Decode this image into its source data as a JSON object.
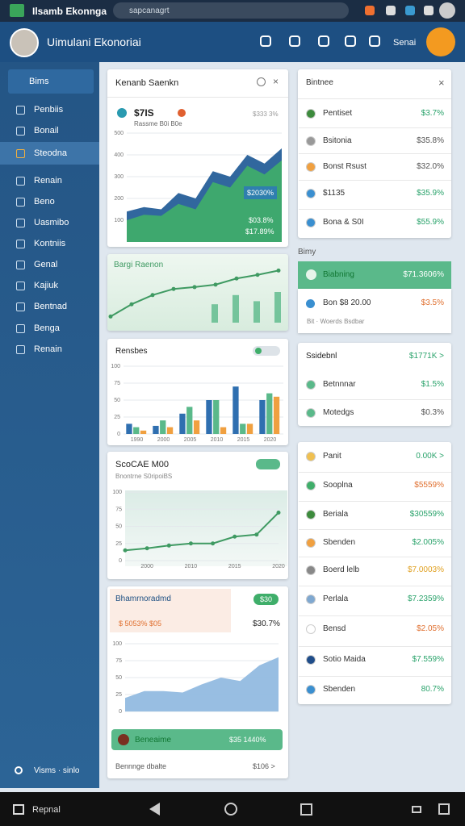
{
  "status": {
    "app": "Ilsamb Ekonnga",
    "url": "sapcanagrt"
  },
  "header": {
    "title": "Uimulani Ekonoriai",
    "user": "Senai"
  },
  "sidebar": {
    "header": "Bims",
    "items": [
      "Penbiis",
      "Bonail",
      "Steodna",
      "Renain",
      "Beno",
      "Uasmibo",
      "Kontniis",
      "Genal",
      "Kajiuk",
      "Bentnad",
      "Benga",
      "Renain"
    ],
    "active": 2,
    "footer": "Visms · sinlo"
  },
  "cards": [
    {
      "title": "Kenanb Saenkn",
      "stat": "$7IS",
      "sub": "Rassme B0i B0e",
      "corner": "$333 3%",
      "badge": "$2030%",
      "labels": [
        "$03.8%",
        "$17.89%"
      ],
      "chart": {
        "type": "area",
        "ylim": [
          0,
          500
        ],
        "yticks": [
          100,
          200,
          300,
          400,
          500
        ],
        "categories": [
          null,
          null,
          null,
          null,
          null,
          null,
          null,
          null,
          null,
          null
        ],
        "series": [
          {
            "color": "#1f5a96",
            "values": [
              140,
              160,
              150,
              225,
              200,
              325,
              300,
              400,
              360,
              430
            ]
          },
          {
            "color": "#3fae6a",
            "values": [
              100,
              125,
              120,
              175,
              150,
              275,
              250,
              350,
              310,
              375
            ]
          }
        ]
      }
    },
    {
      "title": "Bargi Raenon",
      "chart": {
        "type": "line",
        "ylim": [
          0,
          100
        ],
        "categories": [
          null,
          null,
          null,
          null,
          null,
          null,
          null,
          null,
          null
        ],
        "series": [
          {
            "color": "#5ab98a",
            "mark": "bar",
            "values": [
              null,
              null,
              null,
              null,
              null,
              30,
              45,
              35,
              50
            ]
          },
          {
            "color": "#3f9a62",
            "values": [
              10,
              30,
              45,
              55,
              58,
              62,
              72,
              78,
              85
            ]
          }
        ]
      }
    },
    {
      "title": "Rensbes",
      "chart": {
        "type": "bar",
        "ylim": [
          0,
          100
        ],
        "yticks": [
          0,
          25,
          50,
          75,
          100
        ],
        "categories": [
          "1990",
          "2000",
          "2005",
          "2010",
          "2015",
          "2020"
        ],
        "series": [
          {
            "color": "#2f6fb0",
            "values": [
              15,
              12,
              30,
              50,
              70,
              50
            ]
          },
          {
            "color": "#5ab98a",
            "values": [
              10,
              20,
              40,
              50,
              15,
              60
            ]
          },
          {
            "color": "#f0a040",
            "values": [
              5,
              10,
              20,
              10,
              15,
              55
            ]
          }
        ]
      }
    },
    {
      "title": "ScoCAE M00",
      "sub": "Bnontrne S0ripoiBS",
      "chart": {
        "type": "line",
        "ylim": [
          0,
          100
        ],
        "yticks": [
          0,
          25,
          50,
          75,
          100
        ],
        "categories": [
          null,
          "2000",
          null,
          "2010",
          null,
          "2015",
          null,
          "2020"
        ],
        "series": [
          {
            "color": "#3f9a62",
            "values": [
              15,
              18,
              22,
              25,
              25,
              35,
              38,
              70
            ]
          }
        ]
      }
    },
    {
      "title": "Bhamrnoradmd",
      "badge": "$30",
      "stat": "$ 5053%  $05",
      "corner": "$30.7%",
      "bar_label": "Beneaime",
      "bar_value": "$35 1440%",
      "footer": "Bennnge dbalte",
      "footer_value": "$106 >",
      "chart": {
        "type": "area",
        "ylim": [
          0,
          100
        ],
        "yticks": [
          0,
          25,
          50,
          75,
          100
        ],
        "categories": [
          null,
          null,
          null,
          null,
          null,
          null,
          null,
          null,
          null
        ],
        "series": [
          {
            "color": "#8fb8e0",
            "values": [
              20,
              30,
              30,
              28,
              40,
              50,
              45,
              68,
              80
            ]
          }
        ]
      }
    }
  ],
  "right": {
    "panel1": {
      "title": "Bintnee",
      "rows": [
        {
          "label": "Pentiset",
          "value": "$3.7%",
          "color": "#2aa36b",
          "icon": "#3d8b3d"
        },
        {
          "label": "Bsitonia",
          "value": "$35.8%",
          "color": "#555",
          "icon": "#999"
        },
        {
          "label": "Bonst Rsust",
          "value": "$32.0%",
          "color": "#555",
          "icon": "#f0a040"
        },
        {
          "label": "$1135",
          "value": "$35.9%",
          "color": "#2aa36b",
          "icon": "#3a8fd0"
        },
        {
          "label": "Bona & S0I",
          "value": "$55.9%",
          "color": "#2aa36b",
          "icon": "#3a8fd0"
        }
      ]
    },
    "section_label": "Bimy",
    "highlight": {
      "label": "Biabning",
      "value": "$71.3606%"
    },
    "row": {
      "label": "Bon $8 20.00",
      "value": "$3.5%",
      "sub": "Bit · Woerds Bsdbar"
    },
    "panel2": {
      "title": "Ssidebnl",
      "value": "$1771K >",
      "rows": [
        {
          "label": "Betnnnar",
          "value": "$1.5%",
          "color": "#2aa36b",
          "icon": "#5ab98a"
        },
        {
          "label": "Motedgs",
          "value": "$0.3%",
          "color": "#555",
          "icon": "#5ab98a"
        }
      ]
    },
    "panel3": {
      "rows": [
        {
          "label": "Panit",
          "value": "0.00K >",
          "color": "#2aa36b",
          "icon": "#f0c050"
        },
        {
          "label": "Sooplna",
          "value": "$5559%",
          "color": "#e07030",
          "icon": "#3fae6a"
        },
        {
          "label": "Beriala",
          "value": "$30559%",
          "color": "#2aa36b",
          "icon": "#3d8b3d"
        },
        {
          "label": "Sbenden",
          "value": "$2.005%",
          "color": "#2aa36b",
          "icon": "#f0a040"
        },
        {
          "label": "Boerd lelb",
          "value": "$7.0003%",
          "color": "#e0a020",
          "icon": "#888"
        },
        {
          "label": "Perlala",
          "value": "$7.2359%",
          "color": "#2aa36b",
          "icon": "#7fa8d0"
        },
        {
          "label": "Bensd",
          "value": "$2.05%",
          "color": "#e07030",
          "icon": "#ffffff"
        },
        {
          "label": "Sotio Maida",
          "value": "$7.559%",
          "color": "#2aa36b",
          "icon": "#1f4d8a"
        },
        {
          "label": "Sbenden",
          "value": "80.7%",
          "color": "#2aa36b",
          "icon": "#3a8fd0"
        }
      ]
    }
  },
  "nav": {
    "label": "Repnal"
  }
}
